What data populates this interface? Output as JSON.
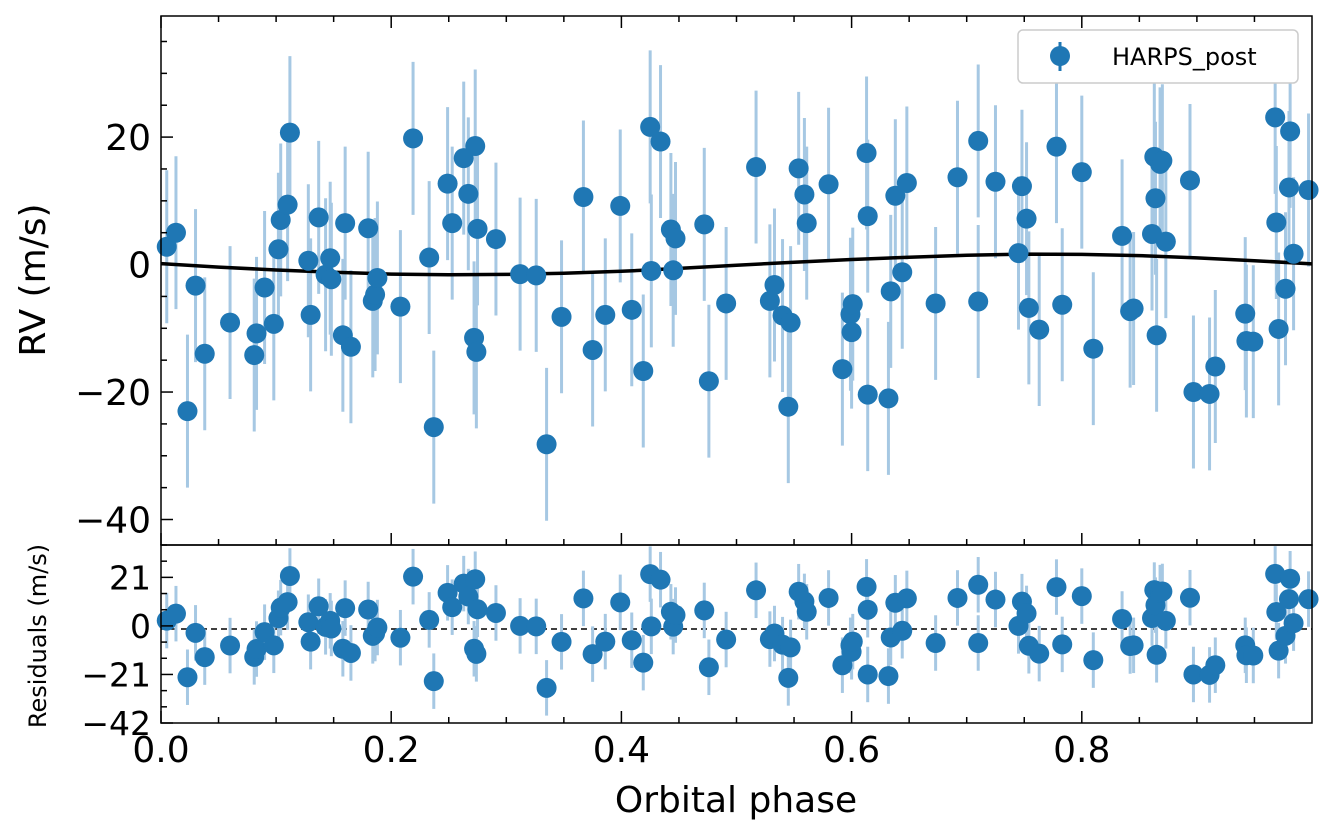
{
  "chart_data": [
    {
      "panel": "rv",
      "type": "scatter",
      "xlabel": "Orbital phase",
      "ylabel": "RV (m/s)",
      "xlim": [
        0.0,
        1.0
      ],
      "ylim": [
        -44,
        39
      ],
      "yticks": [
        -40,
        -20,
        0,
        20
      ],
      "ytick_labels": [
        "−40",
        "−20",
        "0",
        "20"
      ],
      "legend": {
        "label": "HARPS_post",
        "location": "top-right"
      },
      "series_color": "#1f77b4",
      "errorbar_color": "#a6c8e3",
      "model_color": "#000000",
      "points": [
        [
          0.005,
          2.8,
          12
        ],
        [
          0.013,
          5.0,
          12
        ],
        [
          0.023,
          -23.0,
          12
        ],
        [
          0.03,
          -3.3,
          12
        ],
        [
          0.038,
          -14.0,
          12
        ],
        [
          0.06,
          -9.1,
          12
        ],
        [
          0.081,
          -14.2,
          12
        ],
        [
          0.083,
          -10.8,
          12
        ],
        [
          0.09,
          -3.6,
          12
        ],
        [
          0.098,
          -9.3,
          12
        ],
        [
          0.102,
          2.4,
          12
        ],
        [
          0.104,
          7.0,
          12
        ],
        [
          0.11,
          9.4,
          12
        ],
        [
          0.112,
          20.7,
          12
        ],
        [
          0.128,
          0.6,
          12
        ],
        [
          0.13,
          -7.9,
          12
        ],
        [
          0.137,
          7.4,
          12
        ],
        [
          0.143,
          -1.6,
          12
        ],
        [
          0.147,
          1.0,
          12
        ],
        [
          0.148,
          -2.3,
          12
        ],
        [
          0.158,
          -11.1,
          12
        ],
        [
          0.16,
          6.5,
          12
        ],
        [
          0.165,
          -12.9,
          12
        ],
        [
          0.18,
          5.7,
          12
        ],
        [
          0.184,
          -5.7,
          12
        ],
        [
          0.186,
          -4.7,
          12
        ],
        [
          0.188,
          -2.1,
          12
        ],
        [
          0.208,
          -6.6,
          12
        ],
        [
          0.219,
          19.8,
          12
        ],
        [
          0.233,
          1.1,
          12
        ],
        [
          0.237,
          -25.5,
          12
        ],
        [
          0.249,
          12.7,
          12
        ],
        [
          0.253,
          6.5,
          12
        ],
        [
          0.263,
          16.7,
          12
        ],
        [
          0.267,
          11.1,
          12
        ],
        [
          0.272,
          -11.5,
          12
        ],
        [
          0.273,
          18.6,
          12
        ],
        [
          0.274,
          -13.7,
          12
        ],
        [
          0.275,
          5.6,
          12
        ],
        [
          0.291,
          4.0,
          12
        ],
        [
          0.312,
          -1.5,
          12
        ],
        [
          0.326,
          -1.7,
          12
        ],
        [
          0.335,
          -28.2,
          12
        ],
        [
          0.348,
          -8.2,
          12
        ],
        [
          0.367,
          10.6,
          12
        ],
        [
          0.375,
          -13.4,
          12
        ],
        [
          0.386,
          -7.9,
          12
        ],
        [
          0.399,
          9.2,
          12
        ],
        [
          0.409,
          -7.1,
          12
        ],
        [
          0.419,
          -16.7,
          12
        ],
        [
          0.425,
          21.6,
          12
        ],
        [
          0.426,
          -1.0,
          12
        ],
        [
          0.434,
          19.3,
          12
        ],
        [
          0.443,
          5.5,
          12
        ],
        [
          0.445,
          -0.9,
          12
        ],
        [
          0.447,
          4.1,
          12
        ],
        [
          0.472,
          6.3,
          12
        ],
        [
          0.476,
          -18.3,
          12
        ],
        [
          0.491,
          -6.1,
          12
        ],
        [
          0.517,
          15.3,
          12
        ],
        [
          0.529,
          -5.7,
          12
        ],
        [
          0.533,
          -3.2,
          12
        ],
        [
          0.54,
          -8.0,
          12
        ],
        [
          0.545,
          -22.3,
          12
        ],
        [
          0.547,
          -9.1,
          12
        ],
        [
          0.554,
          15.1,
          12
        ],
        [
          0.559,
          11.0,
          12
        ],
        [
          0.561,
          6.5,
          12
        ],
        [
          0.58,
          12.6,
          12
        ],
        [
          0.592,
          -16.4,
          12
        ],
        [
          0.599,
          -7.8,
          12
        ],
        [
          0.6,
          -10.6,
          12
        ],
        [
          0.601,
          -6.2,
          12
        ],
        [
          0.613,
          17.5,
          12
        ],
        [
          0.614,
          -20.4,
          12
        ],
        [
          0.614,
          7.6,
          12
        ],
        [
          0.632,
          -21.0,
          12
        ],
        [
          0.634,
          -4.2,
          12
        ],
        [
          0.638,
          10.8,
          12
        ],
        [
          0.644,
          -1.2,
          12
        ],
        [
          0.648,
          12.8,
          12
        ],
        [
          0.673,
          -6.1,
          12
        ],
        [
          0.692,
          13.7,
          12
        ],
        [
          0.71,
          -5.8,
          12
        ],
        [
          0.71,
          19.4,
          12
        ],
        [
          0.725,
          13.0,
          12
        ],
        [
          0.745,
          1.8,
          12
        ],
        [
          0.748,
          12.3,
          12
        ],
        [
          0.752,
          7.2,
          12
        ],
        [
          0.754,
          -6.8,
          12
        ],
        [
          0.763,
          -10.2,
          12
        ],
        [
          0.778,
          18.5,
          12
        ],
        [
          0.783,
          -6.3,
          12
        ],
        [
          0.8,
          14.5,
          12
        ],
        [
          0.81,
          -13.2,
          12
        ],
        [
          0.835,
          4.5,
          12
        ],
        [
          0.842,
          -7.3,
          12
        ],
        [
          0.845,
          -6.9,
          12
        ],
        [
          0.861,
          4.8,
          12
        ],
        [
          0.863,
          16.9,
          12
        ],
        [
          0.864,
          10.4,
          12
        ],
        [
          0.865,
          -11.1,
          12
        ],
        [
          0.868,
          15.8,
          12
        ],
        [
          0.87,
          16.3,
          12
        ],
        [
          0.873,
          3.6,
          12
        ],
        [
          0.894,
          13.2,
          12
        ],
        [
          0.897,
          -20.0,
          12
        ],
        [
          0.911,
          -20.3,
          12
        ],
        [
          0.916,
          -16.0,
          12
        ],
        [
          0.942,
          -7.7,
          12
        ],
        [
          0.943,
          -12.0,
          12
        ],
        [
          0.949,
          -12.1,
          12
        ],
        [
          0.968,
          23.1,
          12
        ],
        [
          0.969,
          6.6,
          12
        ],
        [
          0.971,
          -10.1,
          12
        ],
        [
          0.977,
          -3.8,
          12
        ],
        [
          0.98,
          12.1,
          12
        ],
        [
          0.981,
          20.9,
          12
        ],
        [
          0.984,
          1.7,
          12
        ],
        [
          0.997,
          11.7,
          12
        ]
      ],
      "model": [
        [
          0.0,
          0.15
        ],
        [
          0.05,
          -0.4
        ],
        [
          0.1,
          -0.85
        ],
        [
          0.15,
          -1.2
        ],
        [
          0.2,
          -1.5
        ],
        [
          0.25,
          -1.6
        ],
        [
          0.3,
          -1.55
        ],
        [
          0.35,
          -1.35
        ],
        [
          0.4,
          -1.05
        ],
        [
          0.45,
          -0.6
        ],
        [
          0.5,
          -0.1
        ],
        [
          0.55,
          0.35
        ],
        [
          0.6,
          0.8
        ],
        [
          0.65,
          1.15
        ],
        [
          0.7,
          1.45
        ],
        [
          0.75,
          1.65
        ],
        [
          0.8,
          1.6
        ],
        [
          0.85,
          1.4
        ],
        [
          0.9,
          1.05
        ],
        [
          0.95,
          0.6
        ],
        [
          1.0,
          0.1
        ]
      ]
    },
    {
      "panel": "residuals",
      "type": "scatter",
      "xlabel": "Orbital phase",
      "ylabel": "Residuals (m/s)",
      "xlim": [
        0.0,
        1.0
      ],
      "ylim": [
        -42,
        35
      ],
      "xticks": [
        0.0,
        0.2,
        0.4,
        0.6,
        0.8
      ],
      "xtick_labels": [
        "0.0",
        "0.2",
        "0.4",
        "0.6",
        "0.8"
      ],
      "yticks": [
        -42,
        -21,
        0,
        21
      ],
      "ytick_labels": [
        "−42",
        "−21",
        "0",
        "21"
      ],
      "zero_line": "dashed",
      "series_color": "#1f77b4",
      "errorbar_color": "#a6c8e3",
      "points": [
        [
          0.005,
          2.3,
          12
        ],
        [
          0.013,
          5.3,
          12
        ],
        [
          0.023,
          -22.2,
          12
        ],
        [
          0.03,
          -3.0,
          12
        ],
        [
          0.038,
          -13.5,
          12
        ],
        [
          0.06,
          -8.5,
          12
        ],
        [
          0.081,
          -13.4,
          12
        ],
        [
          0.083,
          -10.0,
          12
        ],
        [
          0.09,
          -2.7,
          12
        ],
        [
          0.098,
          -8.4,
          12
        ],
        [
          0.102,
          3.3,
          12
        ],
        [
          0.104,
          7.9,
          12
        ],
        [
          0.11,
          10.3,
          12
        ],
        [
          0.112,
          21.6,
          12
        ],
        [
          0.128,
          1.6,
          12
        ],
        [
          0.13,
          -6.8,
          12
        ],
        [
          0.137,
          8.5,
          12
        ],
        [
          0.143,
          -0.4,
          12
        ],
        [
          0.147,
          2.2,
          12
        ],
        [
          0.148,
          -1.1,
          12
        ],
        [
          0.158,
          -9.9,
          12
        ],
        [
          0.16,
          7.7,
          12
        ],
        [
          0.165,
          -11.7,
          12
        ],
        [
          0.18,
          7.1,
          12
        ],
        [
          0.184,
          -4.3,
          12
        ],
        [
          0.186,
          -3.3,
          12
        ],
        [
          0.188,
          -0.7,
          12
        ],
        [
          0.208,
          -5.1,
          12
        ],
        [
          0.219,
          21.3,
          12
        ],
        [
          0.233,
          2.6,
          12
        ],
        [
          0.237,
          -23.9,
          12
        ],
        [
          0.249,
          14.3,
          12
        ],
        [
          0.253,
          8.1,
          12
        ],
        [
          0.263,
          18.3,
          12
        ],
        [
          0.267,
          12.7,
          12
        ],
        [
          0.272,
          -9.9,
          12
        ],
        [
          0.273,
          20.2,
          12
        ],
        [
          0.274,
          -12.1,
          12
        ],
        [
          0.275,
          7.2,
          12
        ],
        [
          0.291,
          5.6,
          12
        ],
        [
          0.312,
          0.0,
          12
        ],
        [
          0.326,
          -0.2,
          12
        ],
        [
          0.335,
          -26.8,
          12
        ],
        [
          0.348,
          -6.9,
          12
        ],
        [
          0.367,
          11.9,
          12
        ],
        [
          0.375,
          -12.2,
          12
        ],
        [
          0.386,
          -6.8,
          12
        ],
        [
          0.399,
          10.2,
          12
        ],
        [
          0.409,
          -6.2,
          12
        ],
        [
          0.419,
          -15.9,
          12
        ],
        [
          0.425,
          22.4,
          12
        ],
        [
          0.426,
          -0.2,
          12
        ],
        [
          0.434,
          20.0,
          12
        ],
        [
          0.443,
          6.1,
          12
        ],
        [
          0.445,
          -0.3,
          12
        ],
        [
          0.447,
          4.7,
          12
        ],
        [
          0.472,
          6.7,
          12
        ],
        [
          0.476,
          -17.9,
          12
        ],
        [
          0.491,
          -5.9,
          12
        ],
        [
          0.517,
          15.4,
          12
        ],
        [
          0.529,
          -5.7,
          12
        ],
        [
          0.533,
          -3.3,
          12
        ],
        [
          0.54,
          -8.1,
          12
        ],
        [
          0.545,
          -22.5,
          12
        ],
        [
          0.547,
          -9.3,
          12
        ],
        [
          0.554,
          14.8,
          12
        ],
        [
          0.559,
          10.6,
          12
        ],
        [
          0.561,
          6.1,
          12
        ],
        [
          0.58,
          12.1,
          12
        ],
        [
          0.592,
          -17.0,
          12
        ],
        [
          0.599,
          -8.4,
          12
        ],
        [
          0.6,
          -11.2,
          12
        ],
        [
          0.601,
          -6.8,
          12
        ],
        [
          0.613,
          16.9,
          12
        ],
        [
          0.614,
          -21.0,
          12
        ],
        [
          0.614,
          7.0,
          12
        ],
        [
          0.632,
          -21.7,
          12
        ],
        [
          0.634,
          -5.0,
          12
        ],
        [
          0.638,
          10.0,
          12
        ],
        [
          0.644,
          -2.1,
          12
        ],
        [
          0.648,
          11.9,
          12
        ],
        [
          0.673,
          -7.4,
          12
        ],
        [
          0.692,
          12.1,
          12
        ],
        [
          0.71,
          -7.4,
          12
        ],
        [
          0.71,
          17.8,
          12
        ],
        [
          0.725,
          11.4,
          12
        ],
        [
          0.745,
          0.0,
          12
        ],
        [
          0.748,
          10.5,
          12
        ],
        [
          0.752,
          5.4,
          12
        ],
        [
          0.754,
          -8.6,
          12
        ],
        [
          0.763,
          -12.0,
          12
        ],
        [
          0.778,
          16.8,
          12
        ],
        [
          0.783,
          -8.0,
          12
        ],
        [
          0.8,
          12.9,
          12
        ],
        [
          0.81,
          -14.8,
          12
        ],
        [
          0.835,
          3.0,
          12
        ],
        [
          0.842,
          -8.7,
          12
        ],
        [
          0.845,
          -8.4,
          12
        ],
        [
          0.861,
          3.4,
          12
        ],
        [
          0.863,
          15.5,
          12
        ],
        [
          0.864,
          9.0,
          12
        ],
        [
          0.865,
          -12.5,
          12
        ],
        [
          0.868,
          14.4,
          12
        ],
        [
          0.87,
          14.9,
          12
        ],
        [
          0.873,
          2.2,
          12
        ],
        [
          0.894,
          12.2,
          12
        ],
        [
          0.897,
          -21.0,
          12
        ],
        [
          0.911,
          -21.2,
          12
        ],
        [
          0.916,
          -17.0,
          12
        ],
        [
          0.942,
          -8.4,
          12
        ],
        [
          0.943,
          -12.7,
          12
        ],
        [
          0.949,
          -12.8,
          12
        ],
        [
          0.968,
          22.5,
          12
        ],
        [
          0.969,
          6.0,
          12
        ],
        [
          0.971,
          -10.7,
          12
        ],
        [
          0.977,
          -4.3,
          12
        ],
        [
          0.98,
          11.6,
          12
        ],
        [
          0.981,
          20.4,
          12
        ],
        [
          0.984,
          1.2,
          12
        ],
        [
          0.997,
          11.6,
          12
        ]
      ]
    }
  ]
}
